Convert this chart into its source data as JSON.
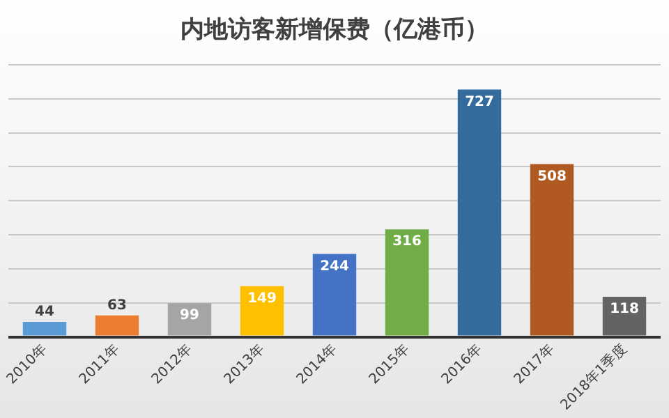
{
  "chart_data": {
    "type": "bar",
    "title": "内地访客新增保费（亿港币）",
    "categories": [
      "2010年",
      "2011年",
      "2012年",
      "2013年",
      "2014年",
      "2015年",
      "2016年",
      "2017年",
      "2018年1季度"
    ],
    "values": [
      44,
      63,
      99,
      149,
      244,
      316,
      727,
      508,
      118
    ],
    "colors": [
      "#5b9bd5",
      "#ed7d31",
      "#a5a5a5",
      "#ffc000",
      "#4472c4",
      "#70ad47",
      "#336b9c",
      "#b05a22",
      "#636363"
    ],
    "ylim": [
      0,
      800
    ],
    "yticks": [
      {
        "value": 0,
        "label": null
      },
      {
        "value": 100,
        "label": null
      },
      {
        "value": 200,
        "label": null
      },
      {
        "value": 300,
        "label": null
      },
      {
        "value": 400,
        "label": null
      },
      {
        "value": 500,
        "label": null
      },
      {
        "value": 600,
        "label": null
      },
      {
        "value": 700,
        "label": null
      },
      {
        "value": 800,
        "label": null
      }
    ],
    "tick_labels": "x",
    "grid": "y",
    "data_labels": true,
    "legend": false
  }
}
